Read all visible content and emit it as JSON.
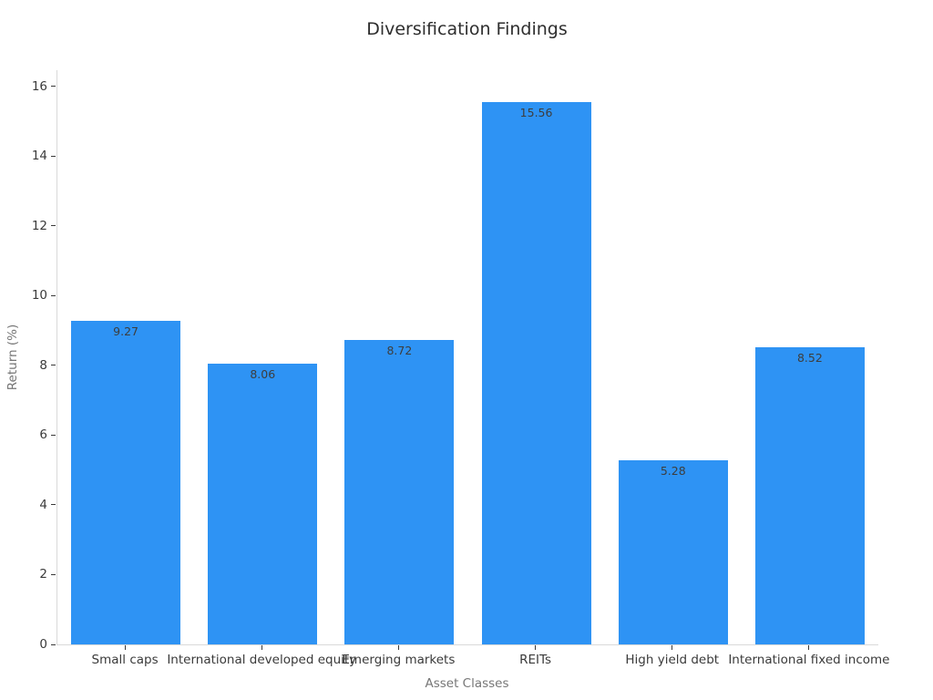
{
  "chart_data": {
    "type": "bar",
    "title": "Diversification Findings",
    "xlabel": "Asset Classes",
    "ylabel": "Return (%)",
    "categories": [
      "Small caps",
      "International developed equity",
      "Emerging markets",
      "REITs",
      "High yield debt",
      "International fixed income"
    ],
    "values": [
      9.27,
      8.06,
      8.72,
      15.56,
      5.28,
      8.52
    ],
    "value_labels": [
      "9.27",
      "8.06",
      "8.72",
      "15.56",
      "5.28",
      "8.52"
    ],
    "yticks": [
      0,
      2,
      4,
      6,
      8,
      10,
      12,
      14,
      16
    ],
    "ylim": [
      0,
      16.47
    ],
    "bar_color": "#2e93f4",
    "background_color": "#ffffff",
    "grid": false,
    "legend_position": "none"
  }
}
